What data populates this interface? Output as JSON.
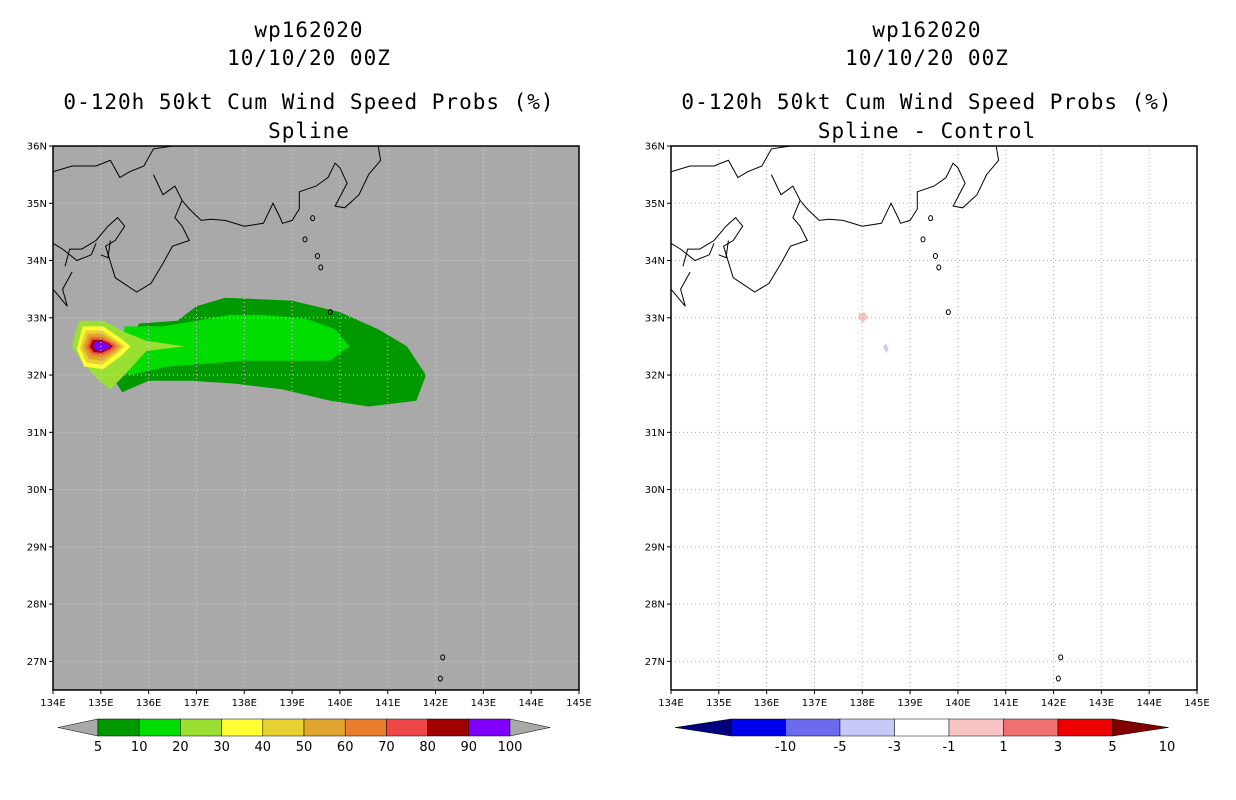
{
  "chart_data": [
    {
      "type": "filled-contour-map",
      "storm_id": "wp162020",
      "date": "10/10/20 00Z",
      "title": "0-120h 50kt Cum Wind Speed Probs (%)",
      "subtitle": "Spline",
      "xlim": [
        134,
        145
      ],
      "ylim": [
        26.5,
        36
      ],
      "xticks": [
        "134E",
        "135E",
        "136E",
        "137E",
        "138E",
        "139E",
        "140E",
        "141E",
        "142E",
        "143E",
        "144E",
        "145E"
      ],
      "yticks": [
        "27N",
        "28N",
        "29N",
        "30N",
        "31N",
        "32N",
        "33N",
        "34N",
        "35N",
        "36N"
      ],
      "background": "#a9a9a9",
      "contour_levels": [
        5,
        10,
        20,
        30,
        40,
        50,
        60,
        70,
        80,
        90,
        100
      ],
      "colorbar_colors": [
        "#009900",
        "#00dd00",
        "#99e033",
        "#ffff33",
        "#e8d031",
        "#e0a52e",
        "#e87d2e",
        "#f04848",
        "#a00000",
        "#7f00ff"
      ],
      "regions": [
        {
          "level": 5,
          "points": [
            [
              135.8,
              32.9
            ],
            [
              136.6,
              32.95
            ],
            [
              137.0,
              33.2
            ],
            [
              137.6,
              33.35
            ],
            [
              139.0,
              33.3
            ],
            [
              140.0,
              33.1
            ],
            [
              140.8,
              32.8
            ],
            [
              141.4,
              32.5
            ],
            [
              141.8,
              32.0
            ],
            [
              141.6,
              31.55
            ],
            [
              140.6,
              31.45
            ],
            [
              139.8,
              31.55
            ],
            [
              138.8,
              31.75
            ],
            [
              137.8,
              31.85
            ],
            [
              136.9,
              31.9
            ],
            [
              136.0,
              31.9
            ],
            [
              135.45,
              31.7
            ],
            [
              135.25,
              31.95
            ]
          ]
        },
        {
          "level": 10,
          "points": [
            [
              135.5,
              32.85
            ],
            [
              136.3,
              32.85
            ],
            [
              137.0,
              32.95
            ],
            [
              137.7,
              33.05
            ],
            [
              138.4,
              33.05
            ],
            [
              139.3,
              32.98
            ],
            [
              139.9,
              32.8
            ],
            [
              140.2,
              32.5
            ],
            [
              139.8,
              32.25
            ],
            [
              139.0,
              32.25
            ],
            [
              138.0,
              32.25
            ],
            [
              137.2,
              32.2
            ],
            [
              136.4,
              32.15
            ],
            [
              135.6,
              32.0
            ],
            [
              135.35,
              32.1
            ]
          ]
        },
        {
          "level": 20,
          "points": [
            [
              134.55,
              32.95
            ],
            [
              135.05,
              32.95
            ],
            [
              135.5,
              32.75
            ],
            [
              135.95,
              32.6
            ],
            [
              136.75,
              32.5
            ],
            [
              135.95,
              32.42
            ],
            [
              135.55,
              32.05
            ],
            [
              135.2,
              31.75
            ],
            [
              134.9,
              31.95
            ],
            [
              134.55,
              32.3
            ],
            [
              134.4,
              32.5
            ],
            [
              134.45,
              32.7
            ]
          ]
        },
        {
          "level": 30,
          "points": [
            [
              134.62,
              32.85
            ],
            [
              135.05,
              32.85
            ],
            [
              135.45,
              32.62
            ],
            [
              135.62,
              32.5
            ],
            [
              135.45,
              32.35
            ],
            [
              135.05,
              32.1
            ],
            [
              134.65,
              32.15
            ],
            [
              134.5,
              32.45
            ]
          ]
        },
        {
          "level": 40,
          "points": [
            [
              134.68,
              32.78
            ],
            [
              135.02,
              32.78
            ],
            [
              135.35,
              32.6
            ],
            [
              135.5,
              32.5
            ],
            [
              135.35,
              32.38
            ],
            [
              135.02,
              32.18
            ],
            [
              134.7,
              32.22
            ],
            [
              134.56,
              32.47
            ]
          ]
        },
        {
          "level": 50,
          "points": [
            [
              134.73,
              32.72
            ],
            [
              135.02,
              32.72
            ],
            [
              135.3,
              32.58
            ],
            [
              135.42,
              32.5
            ],
            [
              135.3,
              32.4
            ],
            [
              135.02,
              32.25
            ],
            [
              134.75,
              32.28
            ],
            [
              134.62,
              32.48
            ]
          ]
        },
        {
          "level": 60,
          "points": [
            [
              134.77,
              32.67
            ],
            [
              135.02,
              32.67
            ],
            [
              135.25,
              32.57
            ],
            [
              135.35,
              32.5
            ],
            [
              135.25,
              32.42
            ],
            [
              135.02,
              32.32
            ],
            [
              134.8,
              32.34
            ],
            [
              134.68,
              32.48
            ]
          ]
        },
        {
          "level": 70,
          "points": [
            [
              134.8,
              32.64
            ],
            [
              135.02,
              32.64
            ],
            [
              135.22,
              32.56
            ],
            [
              135.3,
              32.5
            ],
            [
              135.22,
              32.44
            ],
            [
              135.02,
              32.36
            ],
            [
              134.83,
              32.37
            ],
            [
              134.72,
              32.49
            ]
          ]
        },
        {
          "level": 80,
          "points": [
            [
              134.83,
              32.61
            ],
            [
              135.02,
              32.61
            ],
            [
              135.18,
              32.55
            ],
            [
              135.25,
              32.5
            ],
            [
              135.18,
              32.45
            ],
            [
              135.02,
              32.39
            ],
            [
              134.86,
              32.4
            ],
            [
              134.77,
              32.49
            ]
          ]
        },
        {
          "level": 90,
          "points": [
            [
              134.88,
              32.58
            ],
            [
              135.02,
              32.58
            ],
            [
              135.15,
              32.53
            ],
            [
              135.2,
              32.5
            ],
            [
              135.15,
              32.47
            ],
            [
              135.02,
              32.42
            ],
            [
              134.9,
              32.43
            ],
            [
              134.84,
              32.5
            ]
          ]
        }
      ],
      "colorbar_labels": [
        "5",
        "10",
        "20",
        "30",
        "40",
        "50",
        "60",
        "70",
        "80",
        "90",
        "100"
      ]
    },
    {
      "type": "filled-contour-map",
      "storm_id": "wp162020",
      "date": "10/10/20 00Z",
      "title": "0-120h 50kt Cum Wind Speed Probs (%)",
      "subtitle": "Spline - Control",
      "xlim": [
        134,
        145
      ],
      "ylim": [
        26.5,
        36
      ],
      "xticks": [
        "134E",
        "135E",
        "136E",
        "137E",
        "138E",
        "139E",
        "140E",
        "141E",
        "142E",
        "143E",
        "144E",
        "145E"
      ],
      "yticks": [
        "27N",
        "28N",
        "29N",
        "30N",
        "31N",
        "32N",
        "33N",
        "34N",
        "35N",
        "36N"
      ],
      "background": "#ffffff",
      "contour_levels": [
        -10,
        -5,
        -3,
        -1,
        1,
        3,
        5,
        10
      ],
      "colorbar_colors": [
        "#000080",
        "#0000ee",
        "#6b6bf0",
        "#c8c8f8",
        "#ffffff",
        "#f8c4c4",
        "#f07070",
        "#ee0000",
        "#800000"
      ],
      "regions": [
        {
          "level": 1,
          "points": [
            [
              137.92,
              33.08
            ],
            [
              138.05,
              33.1
            ],
            [
              138.12,
              33.0
            ],
            [
              138.02,
              32.92
            ],
            [
              137.92,
              32.98
            ]
          ]
        },
        {
          "level": -1,
          "points": [
            [
              138.44,
              32.5
            ],
            [
              138.5,
              32.55
            ],
            [
              138.55,
              32.45
            ],
            [
              138.5,
              32.38
            ]
          ]
        }
      ],
      "colorbar_labels": [
        "-10",
        "-5",
        "-3",
        "-1",
        "1",
        "3",
        "5",
        "10"
      ]
    }
  ],
  "coastlines": [
    [
      [
        134.0,
        35.55
      ],
      [
        134.4,
        35.65
      ],
      [
        134.9,
        35.65
      ],
      [
        135.2,
        35.75
      ],
      [
        135.4,
        35.45
      ],
      [
        135.6,
        35.55
      ],
      [
        135.9,
        35.65
      ],
      [
        136.1,
        35.95
      ],
      [
        136.5,
        36.0
      ]
    ],
    [
      [
        136.1,
        35.5
      ],
      [
        136.3,
        35.15
      ],
      [
        136.55,
        35.3
      ],
      [
        136.7,
        35.05
      ],
      [
        136.85,
        34.9
      ],
      [
        137.1,
        34.7
      ],
      [
        137.3,
        34.72
      ],
      [
        137.6,
        34.7
      ],
      [
        138.0,
        34.6
      ],
      [
        138.4,
        34.65
      ],
      [
        138.6,
        35.0
      ],
      [
        138.75,
        34.75
      ],
      [
        138.8,
        34.65
      ],
      [
        139.0,
        34.7
      ],
      [
        139.15,
        34.9
      ],
      [
        139.15,
        35.2
      ],
      [
        139.5,
        35.3
      ],
      [
        139.75,
        35.45
      ],
      [
        139.9,
        35.7
      ],
      [
        140.0,
        35.62
      ],
      [
        140.15,
        35.35
      ],
      [
        139.9,
        34.95
      ],
      [
        140.1,
        34.92
      ],
      [
        140.4,
        35.15
      ],
      [
        140.6,
        35.5
      ],
      [
        140.85,
        35.75
      ],
      [
        140.8,
        36.0
      ]
    ],
    [
      [
        134.25,
        33.9
      ],
      [
        134.35,
        34.2
      ],
      [
        134.6,
        34.2
      ],
      [
        134.9,
        34.35
      ],
      [
        135.15,
        34.6
      ],
      [
        135.35,
        34.75
      ],
      [
        135.5,
        34.6
      ],
      [
        135.3,
        34.35
      ],
      [
        135.1,
        34.25
      ],
      [
        135.3,
        33.7
      ],
      [
        135.75,
        33.45
      ],
      [
        136.05,
        33.6
      ],
      [
        136.3,
        33.95
      ],
      [
        136.5,
        34.25
      ],
      [
        136.85,
        34.35
      ],
      [
        136.7,
        34.6
      ],
      [
        136.55,
        34.75
      ],
      [
        136.7,
        35.05
      ]
    ],
    [
      [
        134.0,
        33.5
      ],
      [
        134.3,
        33.2
      ],
      [
        134.2,
        33.5
      ],
      [
        134.4,
        33.8
      ]
    ],
    [
      [
        134.0,
        34.3
      ],
      [
        134.2,
        34.2
      ],
      [
        134.5,
        34.0
      ],
      [
        134.8,
        34.1
      ],
      [
        134.9,
        34.3
      ]
    ],
    [
      [
        135.0,
        34.1
      ],
      [
        135.15,
        34.05
      ],
      [
        135.2,
        34.35
      ]
    ]
  ],
  "islands": [
    {
      "lon": 139.43,
      "lat": 34.74
    },
    {
      "lon": 139.27,
      "lat": 34.37
    },
    {
      "lon": 139.53,
      "lat": 34.08
    },
    {
      "lon": 139.6,
      "lat": 33.88
    },
    {
      "lon": 139.8,
      "lat": 33.1
    },
    {
      "lon": 142.15,
      "lat": 27.07
    },
    {
      "lon": 142.1,
      "lat": 26.7
    }
  ]
}
